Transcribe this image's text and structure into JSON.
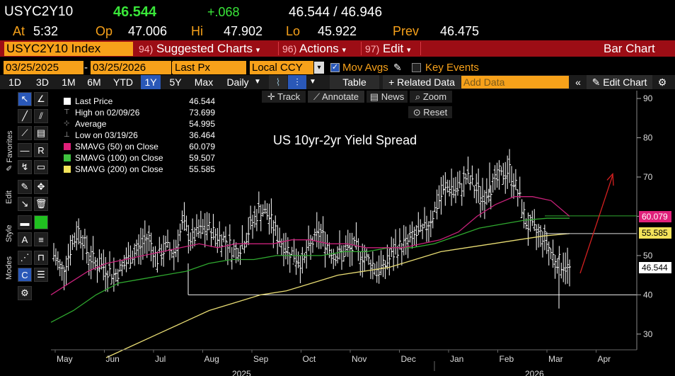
{
  "quote": {
    "ticker": "USYC2Y10",
    "last": "46.544",
    "change": "+.068",
    "bid_ask": "46.544 / 46.946",
    "at_label": "At",
    "time": "5:32",
    "open_label": "Op",
    "open": "47.006",
    "high_label": "Hi",
    "high": "47.902",
    "low_label": "Lo",
    "low": "45.922",
    "prev_label": "Prev",
    "prev": "46.475"
  },
  "command_bar": {
    "security": "USYC2Y10 Index",
    "suggested_num": "94)",
    "suggested": "Suggested Charts",
    "actions_num": "96)",
    "actions": "Actions",
    "edit_num": "97)",
    "edit": "Edit",
    "view": "Bar Chart"
  },
  "settings": {
    "start_date": "03/25/2025",
    "dash": "-",
    "end_date": "03/25/2026",
    "price_type": "Last Px",
    "currency": "Local CCY",
    "mov_avgs": "Mov Avgs",
    "key_events": "Key Events"
  },
  "toolbar": {
    "ranges": [
      "1D",
      "3D",
      "1M",
      "6M",
      "YTD",
      "1Y",
      "5Y",
      "Max"
    ],
    "active_range": "1Y",
    "frequency": "Daily",
    "table": "Table",
    "related": "+ Related Data",
    "add_data_placeholder": "Add Data",
    "edit_chart": "Edit Chart"
  },
  "chart_tools": {
    "track": "Track",
    "annotate": "Annotate",
    "news": "News",
    "zoom": "Zoom",
    "reset": "Reset"
  },
  "side_labels": {
    "favorites": "Favorites",
    "edit": "Edit",
    "style": "Style",
    "modes": "Modes"
  },
  "legend": [
    {
      "label": "Last Price",
      "value": "46.544",
      "color": "#ffffff"
    },
    {
      "label": "High on 02/09/26",
      "value": "73.699",
      "color": "#aaaaaa"
    },
    {
      "label": "Average",
      "value": "54.995",
      "color": "#aaaaaa"
    },
    {
      "label": "Low on 03/19/26",
      "value": "36.464",
      "color": "#aaaaaa"
    },
    {
      "label": "SMAVG (50)  on Close",
      "value": "60.079",
      "color": "#e0207a"
    },
    {
      "label": "SMAVG (100)  on Close",
      "value": "59.507",
      "color": "#3fc23f"
    },
    {
      "label": "SMAVG (200)  on Close",
      "value": "55.585",
      "color": "#f3e35a"
    }
  ],
  "price_tags": {
    "sma50": "60.079",
    "sma200": "55.585",
    "last": "46.544"
  },
  "colors": {
    "orange": "#f7a11a",
    "redbar": "#9c0d15",
    "sma50": "#c8217a",
    "sma100": "#2fa82f",
    "sma200": "#e8dc73",
    "arrow": "#d42020"
  },
  "chart_data": {
    "type": "bar",
    "title": "US 10yr-2yr Yield Spread",
    "ylim": [
      26,
      92
    ],
    "yticks": [
      30,
      40,
      50,
      60,
      70,
      80,
      90
    ],
    "x_labels": [
      "May",
      "Jun",
      "Jul",
      "Aug",
      "Sep",
      "Oct",
      "Nov",
      "Dec",
      "Jan",
      "Feb",
      "Mar",
      "Apr"
    ],
    "years": [
      "2025",
      "2026"
    ],
    "series_close": [
      50,
      46,
      52,
      57,
      50,
      48,
      47,
      45,
      47,
      50,
      52,
      55,
      49,
      52,
      51,
      58,
      54,
      56,
      57,
      55,
      54,
      51,
      53,
      58,
      62,
      60,
      55,
      52,
      50,
      48,
      53,
      56,
      52,
      50,
      51,
      52,
      50,
      48,
      46,
      49,
      52,
      53,
      55,
      56,
      60,
      65,
      68,
      66,
      70,
      67,
      65,
      68,
      70,
      72,
      66,
      58,
      56,
      55,
      50,
      48,
      46.5
    ],
    "sma50": [
      40,
      43,
      46,
      48,
      49,
      50,
      51,
      52,
      53,
      52,
      53,
      53,
      53,
      54,
      54,
      53,
      53,
      52,
      52,
      52,
      53,
      54,
      56,
      60,
      63,
      65,
      65,
      64,
      60
    ],
    "sma100": [
      33,
      36,
      40,
      43,
      44,
      45,
      46,
      48,
      49,
      49,
      50,
      50,
      50,
      51,
      51,
      52,
      52,
      53,
      55,
      57,
      58,
      59,
      59.5,
      59.5
    ],
    "sma200": [
      24,
      27,
      30,
      33,
      36,
      38,
      40,
      41,
      43,
      45,
      46,
      47,
      49,
      51,
      52,
      53,
      54,
      55,
      55.6
    ],
    "low_line": 40
  }
}
